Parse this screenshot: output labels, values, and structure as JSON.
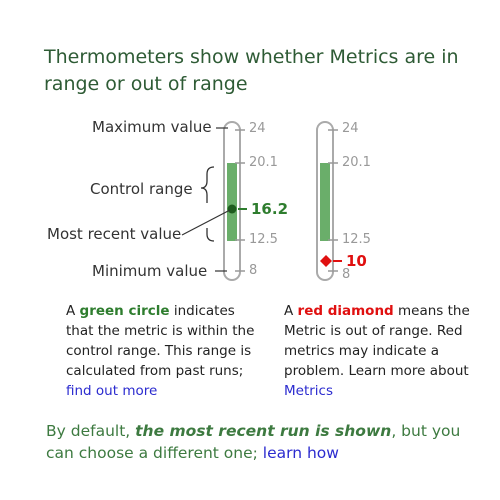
{
  "title": "Thermometers show whether Metrics are in range or out of range",
  "labels": {
    "maximum": "Maximum value",
    "control_range": "Control range",
    "most_recent": "Most recent value",
    "minimum": "Minimum value"
  },
  "thermometer_left": {
    "max": "24",
    "control_high": "20.1",
    "control_low": "12.5",
    "min": "8",
    "value": "16.2",
    "value_color": "#2e7d2e"
  },
  "thermometer_right": {
    "max": "24",
    "control_high": "20.1",
    "control_low": "12.5",
    "min": "8",
    "value": "10",
    "value_color": "#e01010"
  },
  "note_left": {
    "before": "A ",
    "highlight": "green circle",
    "after": " indicates that the metric is within the control range.  This range is calculated from past runs;  ",
    "link": "find out more"
  },
  "note_right": {
    "before": "A ",
    "highlight": "red diamond",
    "after": " means the Metric is out of range. Red metrics may indicate a problem. Learn more about ",
    "link": "Metrics"
  },
  "footer": {
    "before": "By default,  ",
    "emphasis": "the most recent run is shown",
    "after": ",  but you can choose a different one; ",
    "link": "learn how"
  },
  "colors": {
    "range_fill": "#6aae6a",
    "tube_stroke": "#aaaaaa"
  }
}
